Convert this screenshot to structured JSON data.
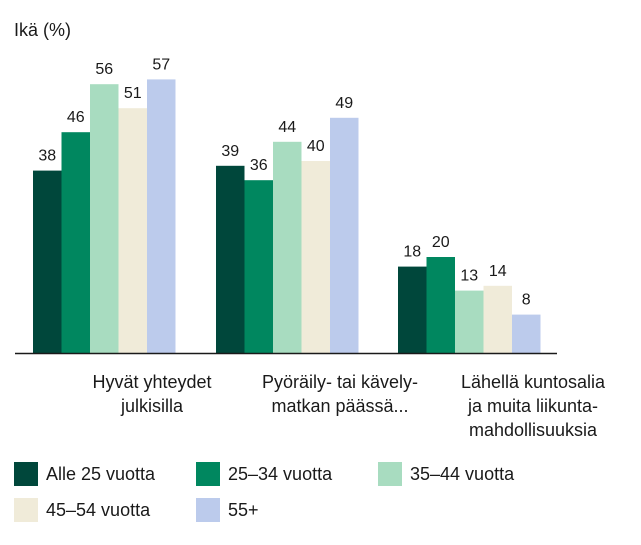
{
  "chart_data": {
    "type": "bar",
    "ylabel": "Ikä (%)",
    "categories": [
      [
        "Hyvät yhteydet",
        "julkisilla"
      ],
      [
        "Pyöräily- tai kävely-",
        "matkan päässä..."
      ],
      [
        "Lähellä kuntosalia",
        "ja muita liikunta-",
        "mahdollisuuksia"
      ]
    ],
    "series": [
      {
        "name": "Alle 25 vuotta",
        "color": "#00473b",
        "values": [
          38,
          39,
          18
        ]
      },
      {
        "name": "25–34 vuotta",
        "color": "#00875f",
        "values": [
          46,
          36,
          20
        ]
      },
      {
        "name": "35–44 vuotta",
        "color": "#a8dcc0",
        "values": [
          56,
          44,
          13
        ]
      },
      {
        "name": "45–54 vuotta",
        "color": "#f0ebd9",
        "values": [
          51,
          40,
          14
        ]
      },
      {
        "name": "55+",
        "color": "#bccbec",
        "values": [
          57,
          49,
          8
        ]
      }
    ],
    "ylim": [
      0,
      57
    ],
    "grid": false,
    "legend_position": "bottom"
  }
}
